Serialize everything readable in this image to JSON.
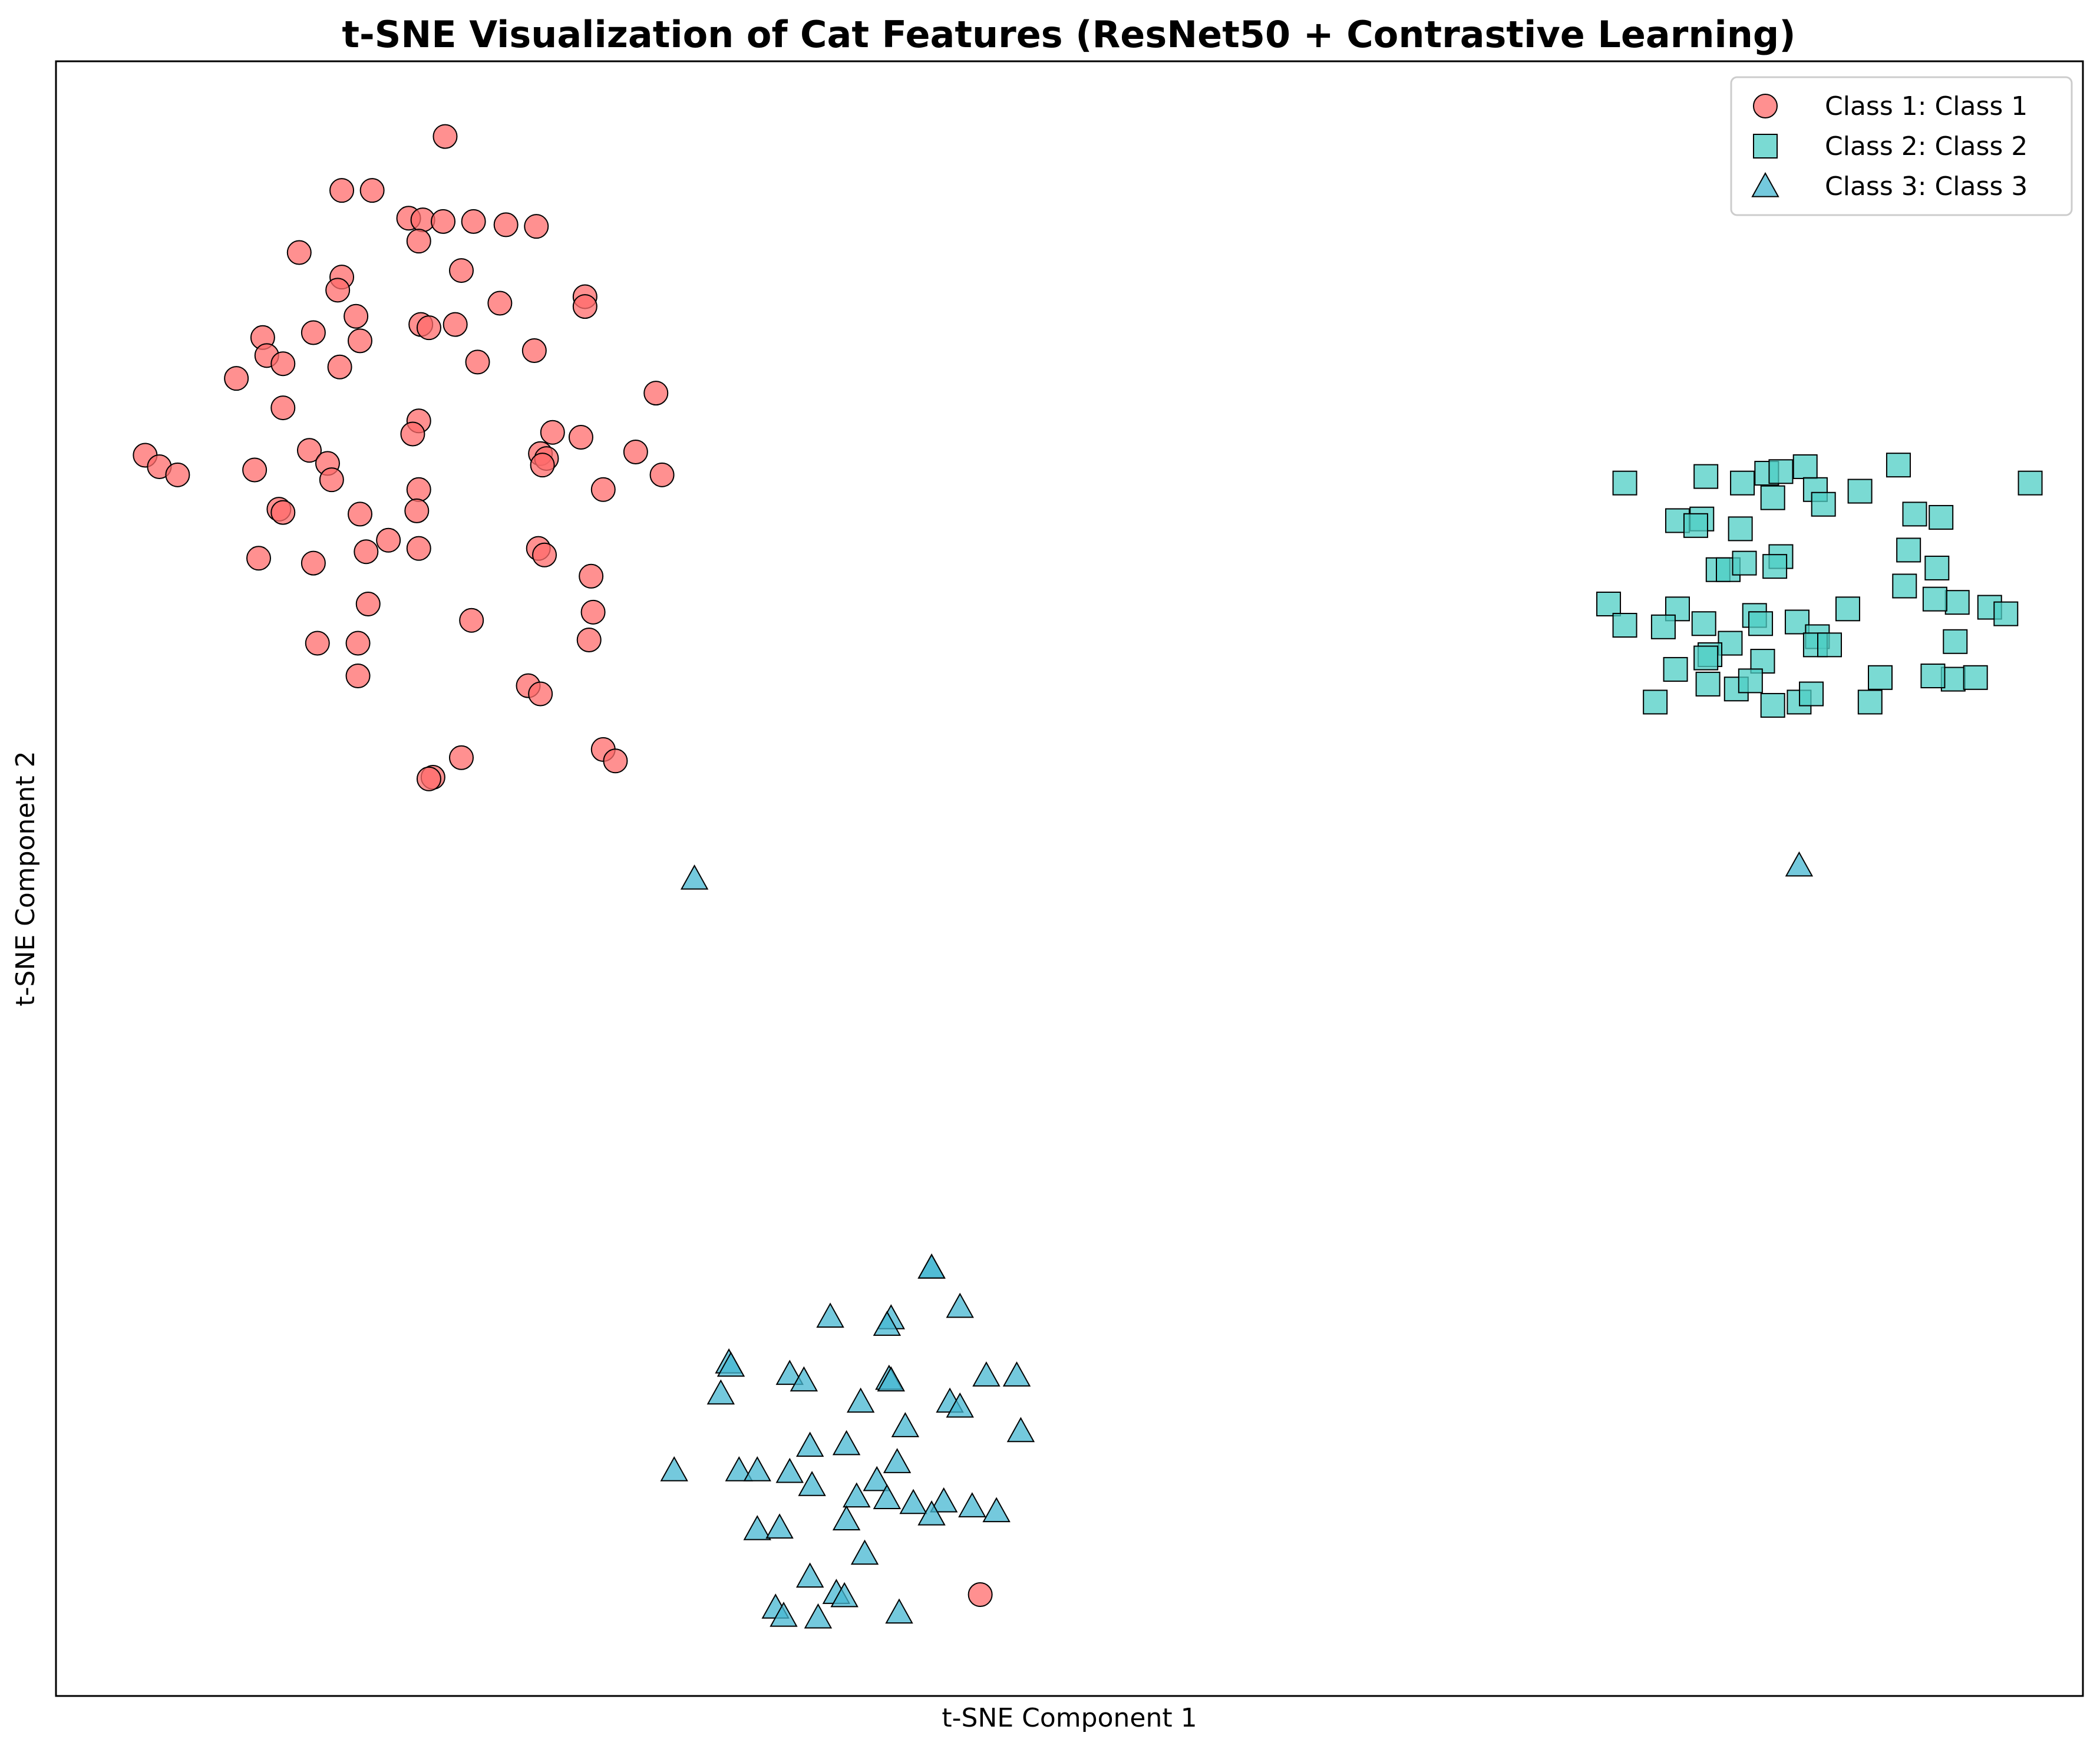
{
  "chart_data": {
    "type": "scatter",
    "title": "t-SNE Visualization of Cat Features (ResNet50 + Contrastive Learning)",
    "xlabel": "t-SNE Component 1",
    "ylabel": "t-SNE Component 2",
    "xlim": [
      0,
      100
    ],
    "ylim": [
      0,
      100
    ],
    "ticks_visible": false,
    "grid": false,
    "legend_position": "top-right",
    "series": [
      {
        "name": "Class 1: Class 1",
        "marker": "circle",
        "color": "#FF6B6B",
        "points": [
          [
            19.2,
            95.4
          ],
          [
            14.1,
            92.1
          ],
          [
            15.6,
            92.1
          ],
          [
            17.4,
            90.4
          ],
          [
            18.1,
            90.3
          ],
          [
            19.1,
            90.2
          ],
          [
            20.6,
            90.2
          ],
          [
            22.2,
            90.0
          ],
          [
            23.7,
            89.9
          ],
          [
            17.9,
            89.0
          ],
          [
            12.0,
            88.3
          ],
          [
            20.0,
            87.2
          ],
          [
            14.1,
            86.8
          ],
          [
            13.9,
            86.0
          ],
          [
            21.9,
            85.2
          ],
          [
            26.1,
            85.6
          ],
          [
            14.8,
            84.4
          ],
          [
            26.1,
            85.0
          ],
          [
            18.0,
            83.9
          ],
          [
            18.4,
            83.7
          ],
          [
            19.7,
            83.9
          ],
          [
            10.2,
            83.1
          ],
          [
            12.7,
            83.4
          ],
          [
            15.0,
            82.9
          ],
          [
            10.4,
            82.0
          ],
          [
            23.6,
            82.3
          ],
          [
            11.2,
            81.5
          ],
          [
            14.0,
            81.3
          ],
          [
            20.8,
            81.6
          ],
          [
            8.9,
            80.6
          ],
          [
            29.6,
            79.7
          ],
          [
            11.2,
            78.8
          ],
          [
            17.9,
            78.0
          ],
          [
            17.6,
            77.2
          ],
          [
            24.5,
            77.3
          ],
          [
            25.9,
            77.0
          ],
          [
            12.5,
            76.2
          ],
          [
            23.9,
            76.0
          ],
          [
            24.2,
            75.7
          ],
          [
            28.6,
            76.1
          ],
          [
            4.4,
            75.9
          ],
          [
            5.1,
            75.2
          ],
          [
            13.4,
            75.4
          ],
          [
            24.0,
            75.3
          ],
          [
            6.0,
            74.7
          ],
          [
            9.8,
            75.0
          ],
          [
            13.6,
            74.4
          ],
          [
            17.9,
            73.8
          ],
          [
            27.0,
            73.8
          ],
          [
            29.9,
            74.7
          ],
          [
            11.0,
            72.6
          ],
          [
            17.8,
            72.5
          ],
          [
            11.2,
            72.4
          ],
          [
            15.0,
            72.3
          ],
          [
            16.4,
            70.7
          ],
          [
            15.3,
            70.0
          ],
          [
            17.9,
            70.2
          ],
          [
            23.8,
            70.2
          ],
          [
            10.0,
            69.6
          ],
          [
            12.7,
            69.3
          ],
          [
            24.1,
            69.8
          ],
          [
            26.4,
            68.5
          ],
          [
            15.4,
            66.8
          ],
          [
            20.5,
            65.8
          ],
          [
            26.5,
            66.3
          ],
          [
            12.9,
            64.4
          ],
          [
            14.9,
            64.4
          ],
          [
            26.3,
            64.6
          ],
          [
            14.9,
            62.4
          ],
          [
            23.3,
            61.8
          ],
          [
            23.9,
            61.3
          ],
          [
            27.0,
            57.9
          ],
          [
            27.6,
            57.2
          ],
          [
            20.0,
            57.4
          ],
          [
            18.6,
            56.2
          ],
          [
            18.4,
            56.1
          ],
          [
            45.6,
            6.2
          ]
        ]
      },
      {
        "name": "Class 2: Class 2",
        "marker": "square",
        "color": "#4ECDC4",
        "points": [
          [
            86.3,
            75.2
          ],
          [
            90.9,
            75.3
          ],
          [
            81.4,
            74.6
          ],
          [
            84.4,
            74.8
          ],
          [
            85.1,
            74.9
          ],
          [
            77.4,
            74.2
          ],
          [
            83.2,
            74.2
          ],
          [
            86.8,
            73.8
          ],
          [
            89.0,
            73.7
          ],
          [
            97.4,
            74.2
          ],
          [
            84.7,
            73.3
          ],
          [
            87.2,
            72.9
          ],
          [
            80.0,
            71.9
          ],
          [
            81.2,
            72.0
          ],
          [
            91.7,
            72.3
          ],
          [
            93.0,
            72.1
          ],
          [
            80.9,
            71.6
          ],
          [
            82.0,
            68.9
          ],
          [
            83.1,
            71.4
          ],
          [
            85.1,
            69.7
          ],
          [
            91.4,
            70.1
          ],
          [
            92.8,
            69.0
          ],
          [
            82.5,
            68.9
          ],
          [
            83.3,
            69.3
          ],
          [
            84.8,
            69.1
          ],
          [
            83.8,
            66.1
          ],
          [
            76.6,
            66.8
          ],
          [
            80.0,
            66.5
          ],
          [
            88.4,
            66.5
          ],
          [
            93.8,
            66.9
          ],
          [
            91.2,
            67.9
          ],
          [
            92.7,
            67.1
          ],
          [
            95.4,
            66.6
          ],
          [
            96.2,
            66.2
          ],
          [
            77.4,
            65.5
          ],
          [
            79.3,
            65.4
          ],
          [
            84.1,
            65.6
          ],
          [
            81.3,
            65.6
          ],
          [
            85.9,
            65.7
          ],
          [
            82.6,
            64.4
          ],
          [
            86.9,
            64.8
          ],
          [
            86.8,
            64.3
          ],
          [
            81.6,
            63.7
          ],
          [
            84.2,
            63.3
          ],
          [
            93.7,
            64.5
          ],
          [
            93.6,
            62.2
          ],
          [
            92.6,
            62.4
          ],
          [
            94.7,
            62.3
          ],
          [
            87.5,
            64.3
          ],
          [
            79.9,
            62.8
          ],
          [
            84.7,
            60.6
          ],
          [
            86.0,
            60.8
          ],
          [
            89.5,
            60.8
          ],
          [
            86.6,
            61.3
          ],
          [
            81.5,
            61.9
          ],
          [
            78.9,
            60.8
          ],
          [
            82.9,
            61.6
          ],
          [
            90.0,
            62.3
          ],
          [
            83.6,
            62.1
          ],
          [
            81.4,
            63.5
          ]
        ]
      },
      {
        "name": "Class 3: Class 3",
        "marker": "triangle",
        "color": "#45B7D1",
        "points": [
          [
            31.5,
            50.0
          ],
          [
            86.0,
            50.8
          ],
          [
            43.2,
            26.2
          ],
          [
            43.2,
            26.2
          ],
          [
            44.6,
            23.8
          ],
          [
            41.2,
            23.1
          ],
          [
            38.2,
            23.2
          ],
          [
            41.0,
            22.7
          ],
          [
            33.2,
            20.4
          ],
          [
            33.3,
            20.2
          ],
          [
            36.2,
            19.7
          ],
          [
            36.9,
            19.3
          ],
          [
            41.1,
            19.4
          ],
          [
            41.2,
            19.3
          ],
          [
            45.9,
            19.6
          ],
          [
            47.4,
            19.6
          ],
          [
            32.8,
            18.5
          ],
          [
            39.7,
            18.0
          ],
          [
            44.1,
            18.0
          ],
          [
            44.6,
            17.7
          ],
          [
            41.9,
            16.5
          ],
          [
            47.6,
            16.2
          ],
          [
            37.2,
            15.3
          ],
          [
            39.0,
            15.4
          ],
          [
            30.5,
            13.8
          ],
          [
            33.7,
            13.8
          ],
          [
            34.6,
            13.8
          ],
          [
            36.2,
            13.7
          ],
          [
            37.3,
            12.9
          ],
          [
            41.5,
            14.3
          ],
          [
            40.5,
            13.2
          ],
          [
            39.5,
            12.2
          ],
          [
            41.0,
            12.1
          ],
          [
            43.8,
            11.9
          ],
          [
            45.2,
            11.6
          ],
          [
            46.4,
            11.3
          ],
          [
            42.3,
            11.8
          ],
          [
            43.2,
            11.1
          ],
          [
            39.0,
            10.8
          ],
          [
            34.6,
            10.2
          ],
          [
            35.7,
            10.3
          ],
          [
            39.9,
            8.7
          ],
          [
            37.2,
            7.3
          ],
          [
            38.5,
            6.3
          ],
          [
            38.9,
            6.1
          ],
          [
            35.5,
            5.4
          ],
          [
            35.9,
            4.9
          ],
          [
            37.6,
            4.8
          ],
          [
            41.6,
            5.1
          ]
        ]
      }
    ]
  },
  "colors": {
    "edge": "#000000",
    "frame": "#000000",
    "background": "#ffffff"
  }
}
